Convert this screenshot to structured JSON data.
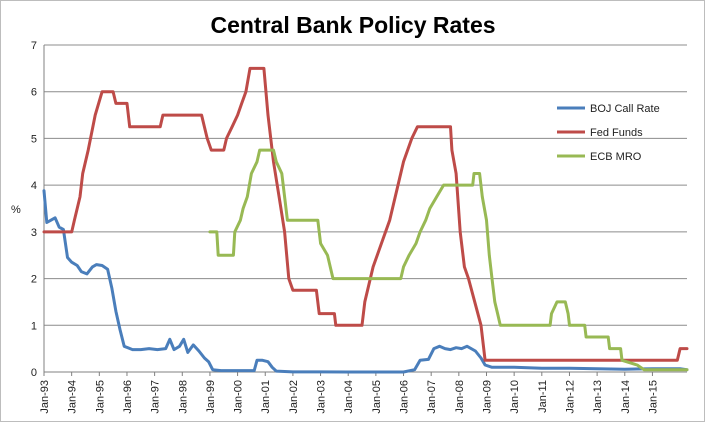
{
  "chart_data": {
    "type": "line",
    "title": "Central Bank Policy Rates",
    "ylabel": "%",
    "xlabel": "",
    "ylim": [
      0,
      7
    ],
    "yticks": [
      0,
      1,
      2,
      3,
      4,
      5,
      6,
      7
    ],
    "grid": "horizontal",
    "legend_position": "right",
    "x_tick_labels": [
      "Jan-93",
      "Jan-94",
      "Jan-95",
      "Jan-96",
      "Jan-97",
      "Jan-98",
      "Jan-99",
      "Jan-00",
      "Jan-01",
      "Jan-02",
      "Jan-03",
      "Jan-04",
      "Jan-05",
      "Jan-06",
      "Jan-07",
      "Jan-08",
      "Jan-09",
      "Jan-10",
      "Jan-11",
      "Jan-12",
      "Jan-13",
      "Jan-14",
      "Jan-15"
    ],
    "x_range": [
      1993.0,
      2016.25
    ],
    "series": [
      {
        "name": "BOJ Call Rate",
        "color": "#4a7ebb",
        "points": [
          [
            1993.0,
            3.88
          ],
          [
            1993.1,
            3.2
          ],
          [
            1993.25,
            3.25
          ],
          [
            1993.4,
            3.3
          ],
          [
            1993.55,
            3.1
          ],
          [
            1993.7,
            3.05
          ],
          [
            1993.85,
            2.45
          ],
          [
            1994.0,
            2.35
          ],
          [
            1994.2,
            2.28
          ],
          [
            1994.35,
            2.15
          ],
          [
            1994.55,
            2.1
          ],
          [
            1994.75,
            2.25
          ],
          [
            1994.9,
            2.3
          ],
          [
            1995.1,
            2.28
          ],
          [
            1995.3,
            2.2
          ],
          [
            1995.45,
            1.8
          ],
          [
            1995.6,
            1.3
          ],
          [
            1995.75,
            0.9
          ],
          [
            1995.9,
            0.55
          ],
          [
            1996.2,
            0.48
          ],
          [
            1996.5,
            0.48
          ],
          [
            1996.8,
            0.5
          ],
          [
            1997.1,
            0.48
          ],
          [
            1997.4,
            0.5
          ],
          [
            1997.55,
            0.7
          ],
          [
            1997.7,
            0.48
          ],
          [
            1997.9,
            0.55
          ],
          [
            1998.05,
            0.7
          ],
          [
            1998.2,
            0.42
          ],
          [
            1998.4,
            0.58
          ],
          [
            1998.6,
            0.45
          ],
          [
            1998.8,
            0.3
          ],
          [
            1998.95,
            0.22
          ],
          [
            1999.1,
            0.05
          ],
          [
            1999.4,
            0.03
          ],
          [
            1999.8,
            0.03
          ],
          [
            2000.2,
            0.03
          ],
          [
            2000.6,
            0.03
          ],
          [
            2000.7,
            0.25
          ],
          [
            2000.9,
            0.25
          ],
          [
            2001.1,
            0.22
          ],
          [
            2001.25,
            0.1
          ],
          [
            2001.4,
            0.02
          ],
          [
            2002.0,
            0.002
          ],
          [
            2003.0,
            0.002
          ],
          [
            2004.0,
            0.001
          ],
          [
            2005.0,
            0.001
          ],
          [
            2006.0,
            0.001
          ],
          [
            2006.4,
            0.05
          ],
          [
            2006.6,
            0.25
          ],
          [
            2006.9,
            0.27
          ],
          [
            2007.1,
            0.5
          ],
          [
            2007.3,
            0.55
          ],
          [
            2007.5,
            0.5
          ],
          [
            2007.7,
            0.48
          ],
          [
            2007.9,
            0.52
          ],
          [
            2008.1,
            0.5
          ],
          [
            2008.3,
            0.55
          ],
          [
            2008.6,
            0.45
          ],
          [
            2008.8,
            0.3
          ],
          [
            2008.95,
            0.15
          ],
          [
            2009.2,
            0.1
          ],
          [
            2010.0,
            0.1
          ],
          [
            2011.0,
            0.08
          ],
          [
            2012.0,
            0.08
          ],
          [
            2013.0,
            0.07
          ],
          [
            2014.0,
            0.06
          ],
          [
            2015.0,
            0.07
          ],
          [
            2016.0,
            0.07
          ],
          [
            2016.25,
            0.05
          ]
        ]
      },
      {
        "name": "Fed Funds",
        "color": "#be4b48",
        "points": [
          [
            1993.0,
            3.0
          ],
          [
            1994.0,
            3.0
          ],
          [
            1994.1,
            3.25
          ],
          [
            1994.3,
            3.75
          ],
          [
            1994.4,
            4.25
          ],
          [
            1994.6,
            4.75
          ],
          [
            1994.85,
            5.5
          ],
          [
            1995.1,
            6.0
          ],
          [
            1995.5,
            6.0
          ],
          [
            1995.6,
            5.75
          ],
          [
            1996.0,
            5.75
          ],
          [
            1996.1,
            5.25
          ],
          [
            1997.2,
            5.25
          ],
          [
            1997.3,
            5.5
          ],
          [
            1998.7,
            5.5
          ],
          [
            1998.8,
            5.25
          ],
          [
            1998.9,
            5.0
          ],
          [
            1999.05,
            4.75
          ],
          [
            1999.5,
            4.75
          ],
          [
            1999.6,
            5.0
          ],
          [
            1999.8,
            5.25
          ],
          [
            2000.0,
            5.5
          ],
          [
            2000.15,
            5.75
          ],
          [
            2000.3,
            6.0
          ],
          [
            2000.45,
            6.5
          ],
          [
            2000.95,
            6.5
          ],
          [
            2001.1,
            5.5
          ],
          [
            2001.3,
            4.5
          ],
          [
            2001.5,
            3.75
          ],
          [
            2001.7,
            3.0
          ],
          [
            2001.85,
            2.0
          ],
          [
            2002.0,
            1.75
          ],
          [
            2002.85,
            1.75
          ],
          [
            2002.95,
            1.25
          ],
          [
            2003.5,
            1.25
          ],
          [
            2003.55,
            1.0
          ],
          [
            2004.5,
            1.0
          ],
          [
            2004.6,
            1.5
          ],
          [
            2004.9,
            2.25
          ],
          [
            2005.2,
            2.75
          ],
          [
            2005.5,
            3.25
          ],
          [
            2005.8,
            4.0
          ],
          [
            2006.0,
            4.5
          ],
          [
            2006.3,
            5.0
          ],
          [
            2006.5,
            5.25
          ],
          [
            2007.7,
            5.25
          ],
          [
            2007.75,
            4.75
          ],
          [
            2007.9,
            4.25
          ],
          [
            2008.05,
            3.0
          ],
          [
            2008.2,
            2.25
          ],
          [
            2008.35,
            2.0
          ],
          [
            2008.8,
            1.0
          ],
          [
            2008.95,
            0.25
          ],
          [
            2015.9,
            0.25
          ],
          [
            2016.0,
            0.5
          ],
          [
            2016.25,
            0.5
          ]
        ]
      },
      {
        "name": "ECB MRO",
        "color": "#98b954",
        "points": [
          [
            1999.0,
            3.0
          ],
          [
            1999.25,
            3.0
          ],
          [
            1999.3,
            2.5
          ],
          [
            1999.85,
            2.5
          ],
          [
            1999.9,
            3.0
          ],
          [
            2000.1,
            3.25
          ],
          [
            2000.2,
            3.5
          ],
          [
            2000.35,
            3.75
          ],
          [
            2000.5,
            4.25
          ],
          [
            2000.7,
            4.5
          ],
          [
            2000.8,
            4.75
          ],
          [
            2001.3,
            4.75
          ],
          [
            2001.4,
            4.5
          ],
          [
            2001.6,
            4.25
          ],
          [
            2001.7,
            3.75
          ],
          [
            2001.8,
            3.25
          ],
          [
            2002.9,
            3.25
          ],
          [
            2003.0,
            2.75
          ],
          [
            2003.25,
            2.5
          ],
          [
            2003.45,
            2.0
          ],
          [
            2005.9,
            2.0
          ],
          [
            2006.0,
            2.25
          ],
          [
            2006.2,
            2.5
          ],
          [
            2006.45,
            2.75
          ],
          [
            2006.6,
            3.0
          ],
          [
            2006.8,
            3.25
          ],
          [
            2006.95,
            3.5
          ],
          [
            2007.2,
            3.75
          ],
          [
            2007.45,
            4.0
          ],
          [
            2008.5,
            4.0
          ],
          [
            2008.55,
            4.25
          ],
          [
            2008.75,
            4.25
          ],
          [
            2008.85,
            3.75
          ],
          [
            2009.0,
            3.25
          ],
          [
            2009.1,
            2.5
          ],
          [
            2009.2,
            2.0
          ],
          [
            2009.3,
            1.5
          ],
          [
            2009.4,
            1.25
          ],
          [
            2009.5,
            1.0
          ],
          [
            2011.3,
            1.0
          ],
          [
            2011.35,
            1.25
          ],
          [
            2011.55,
            1.5
          ],
          [
            2011.85,
            1.5
          ],
          [
            2011.95,
            1.25
          ],
          [
            2012.0,
            1.0
          ],
          [
            2012.55,
            1.0
          ],
          [
            2012.6,
            0.75
          ],
          [
            2013.4,
            0.75
          ],
          [
            2013.45,
            0.5
          ],
          [
            2013.85,
            0.5
          ],
          [
            2013.9,
            0.25
          ],
          [
            2014.45,
            0.15
          ],
          [
            2014.7,
            0.05
          ],
          [
            2016.25,
            0.05
          ]
        ]
      }
    ]
  }
}
